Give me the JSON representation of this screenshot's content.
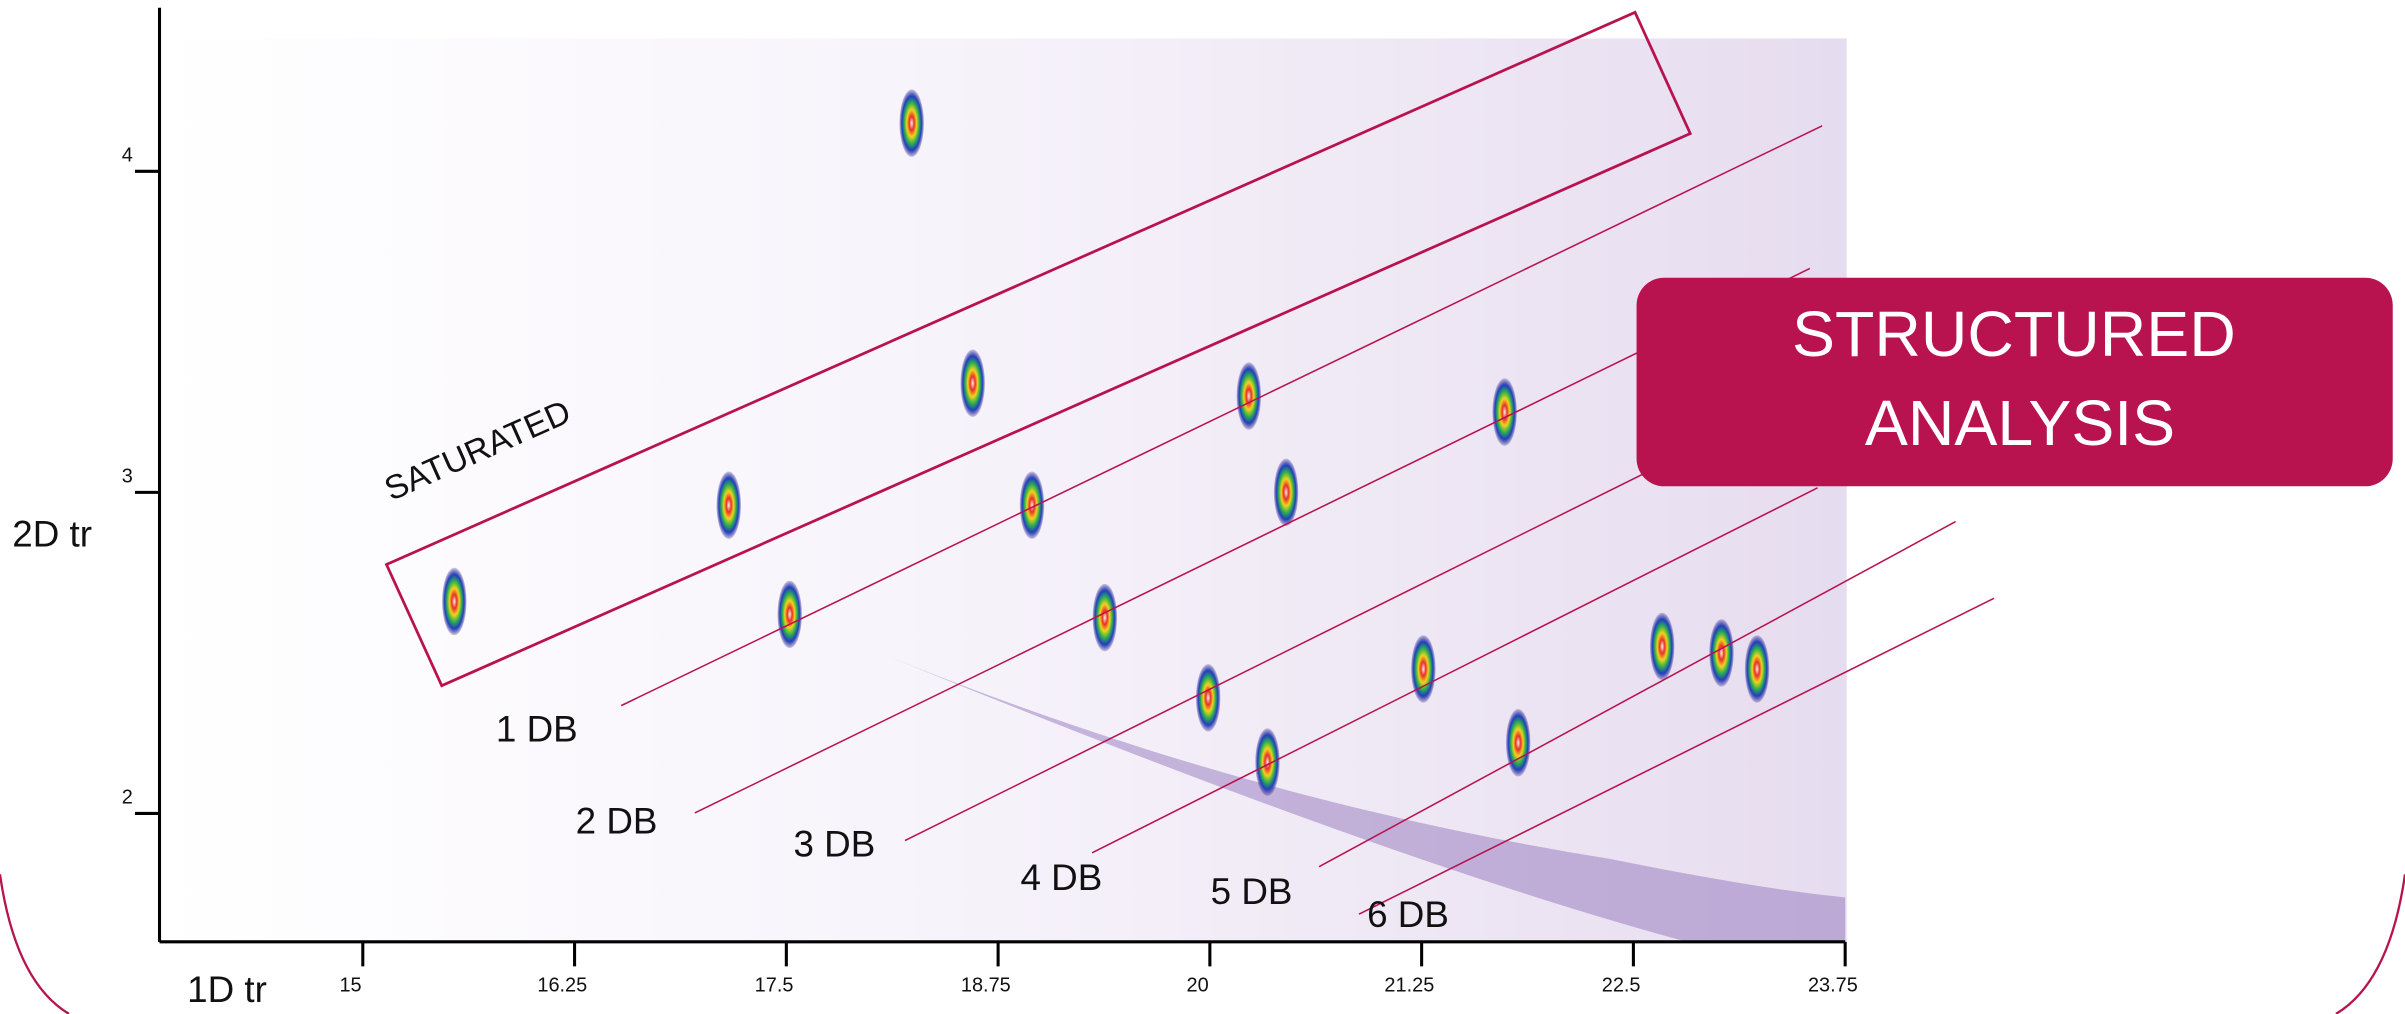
{
  "chart_data": {
    "type": "scatter",
    "x_label": "1D tr",
    "y_label": "2D tr",
    "xlim": [
      13.8,
      23.75
    ],
    "ylim": [
      1.6,
      4.5
    ],
    "xticks": [
      15,
      16.25,
      17.5,
      18.75,
      20,
      21.25,
      22.5,
      23.75
    ],
    "yticks": [
      2,
      3,
      4
    ],
    "series": [
      {
        "x": [
          15.54,
          17.16,
          17.52,
          18.24,
          18.6,
          18.95,
          19.38,
          19.99,
          20.23,
          20.45,
          20.34,
          21.26,
          21.74,
          21.82,
          22.67,
          23.02,
          23.23
        ],
        "values": [
          2.66,
          2.96,
          2.62,
          4.15,
          3.34,
          2.96,
          2.61,
          2.36,
          3.3,
          3.0,
          2.16,
          2.45,
          3.25,
          2.22,
          2.52,
          2.5,
          2.45
        ]
      }
    ],
    "annotations": [
      "SATURATED",
      "1 DB",
      "2 DB",
      "3 DB",
      "4 DB",
      "5 DB",
      "6 DB"
    ],
    "callout": [
      "STRUCTURED",
      "ANALYSIS"
    ]
  }
}
